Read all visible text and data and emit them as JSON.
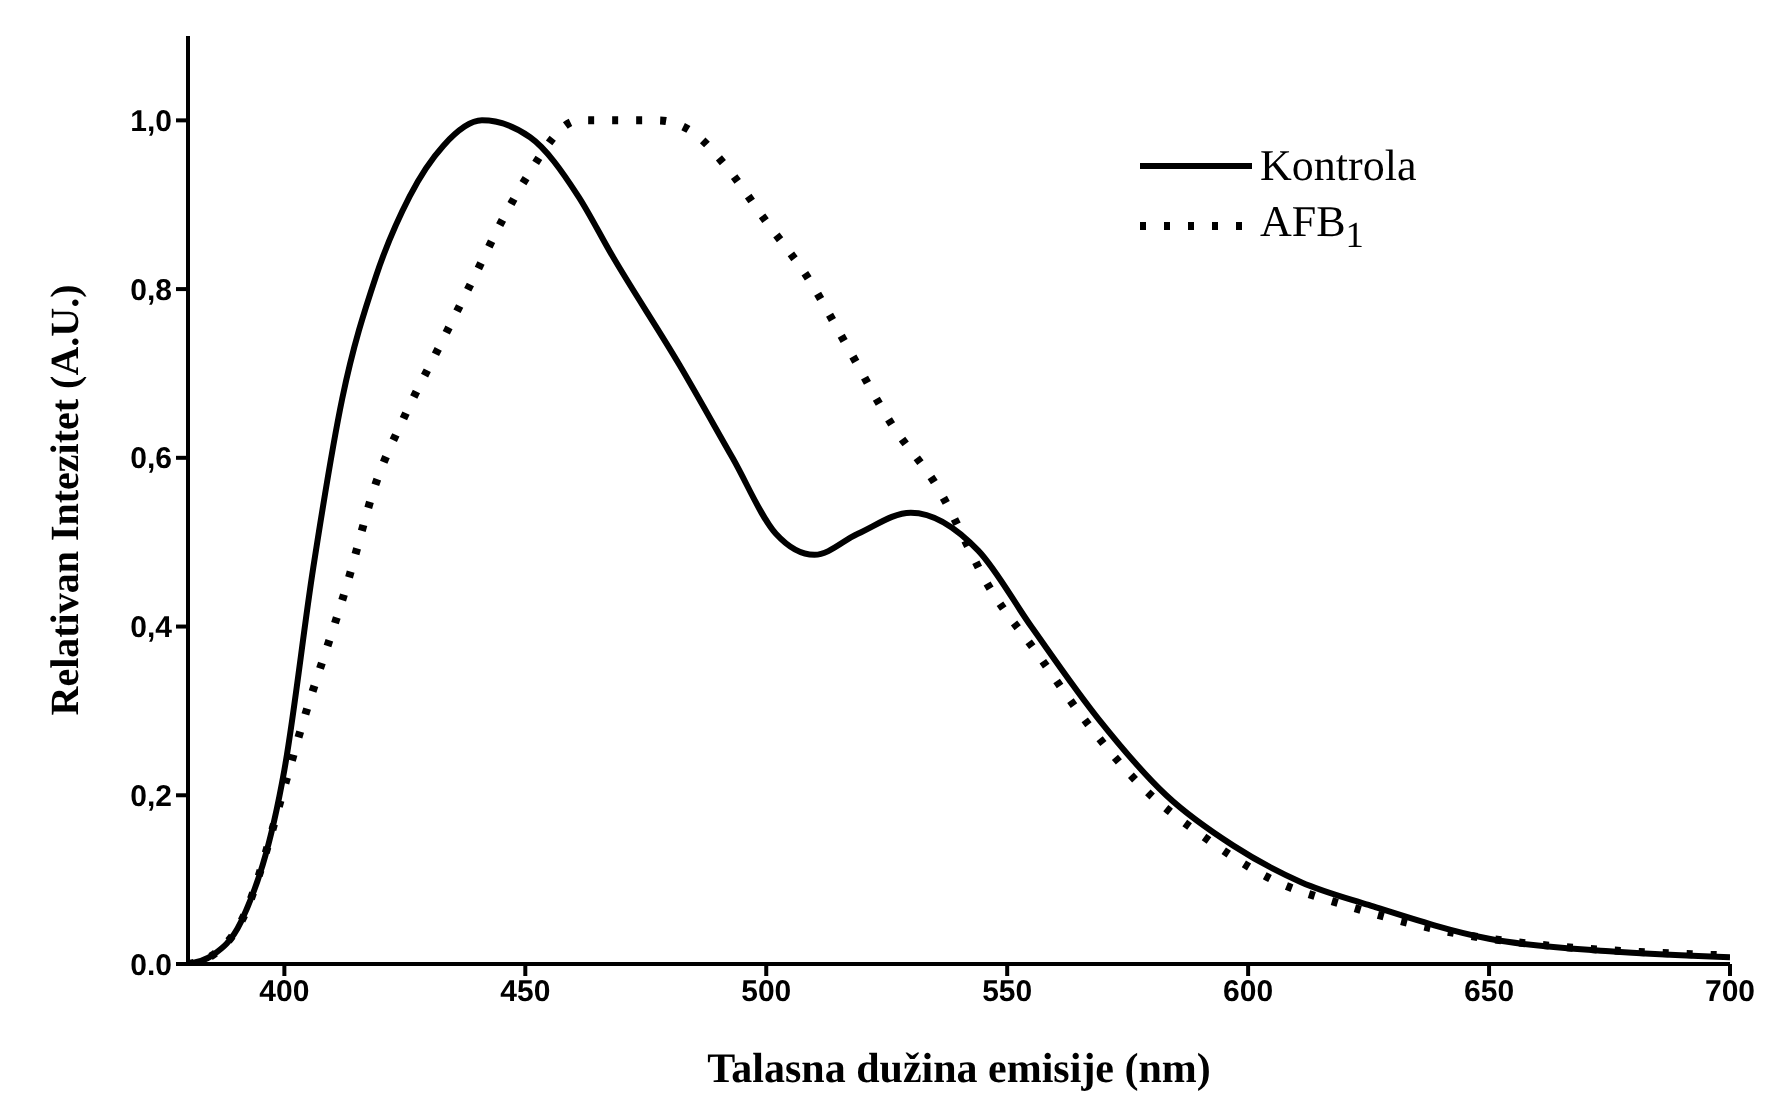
{
  "chart_data": {
    "type": "line",
    "xlabel": "Talasna dužina emisije (nm)",
    "ylabel": "Relativan Intezitet (A.U.)",
    "xlim": [
      380,
      700
    ],
    "xticks": [
      400,
      450,
      500,
      550,
      600,
      650,
      700
    ],
    "ylim": [
      0,
      1.1
    ],
    "yticks": [
      {
        "value": 0,
        "label": "0.0"
      },
      {
        "value": 0.2,
        "label": "0,2"
      },
      {
        "value": 0.4,
        "label": "0,4"
      },
      {
        "value": 0.6,
        "label": "0,6"
      },
      {
        "value": 0.8,
        "label": "0,8"
      },
      {
        "value": 1,
        "label": "1,0"
      }
    ],
    "grid": false,
    "legend": "top right",
    "marker": "none",
    "series": [
      {
        "name": "Kontrola",
        "color": "#000000",
        "line_style": "solid",
        "x": [
          380,
          385,
          391,
          400,
          406,
          412,
          419,
          426,
          433,
          441,
          451,
          461,
          468,
          482,
          493,
          502,
          510,
          519,
          530,
          544,
          555,
          569,
          583,
          597,
          611,
          625,
          650,
          675,
          700
        ],
        "values": [
          0,
          0.01,
          0.05,
          0.23,
          0.47,
          0.67,
          0.815,
          0.91,
          0.97,
          1.0,
          0.98,
          0.91,
          0.84,
          0.71,
          0.6,
          0.51,
          0.485,
          0.51,
          0.535,
          0.49,
          0.4,
          0.29,
          0.2,
          0.14,
          0.097,
          0.07,
          0.03,
          0.015,
          0.008
        ]
      },
      {
        "name": "AFB$_{1}$",
        "color": "#000000",
        "line_style": "dotted",
        "x": [
          380,
          385,
          391,
          401,
          403,
          413,
          419,
          425,
          432,
          439,
          446,
          450,
          461,
          477.5,
          485,
          491,
          500,
          509,
          517,
          526,
          535,
          547,
          556,
          566,
          578,
          591,
          605,
          620,
          650,
          700
        ],
        "values": [
          0,
          0.01,
          0.05,
          0.23,
          0.27,
          0.45,
          0.57,
          0.65,
          0.73,
          0.81,
          0.89,
          0.93,
          1.0,
          1.0,
          0.985,
          0.95,
          0.88,
          0.81,
          0.73,
          0.64,
          0.57,
          0.44,
          0.37,
          0.29,
          0.21,
          0.15,
          0.1,
          0.07,
          0.03,
          0.01
        ]
      }
    ]
  }
}
